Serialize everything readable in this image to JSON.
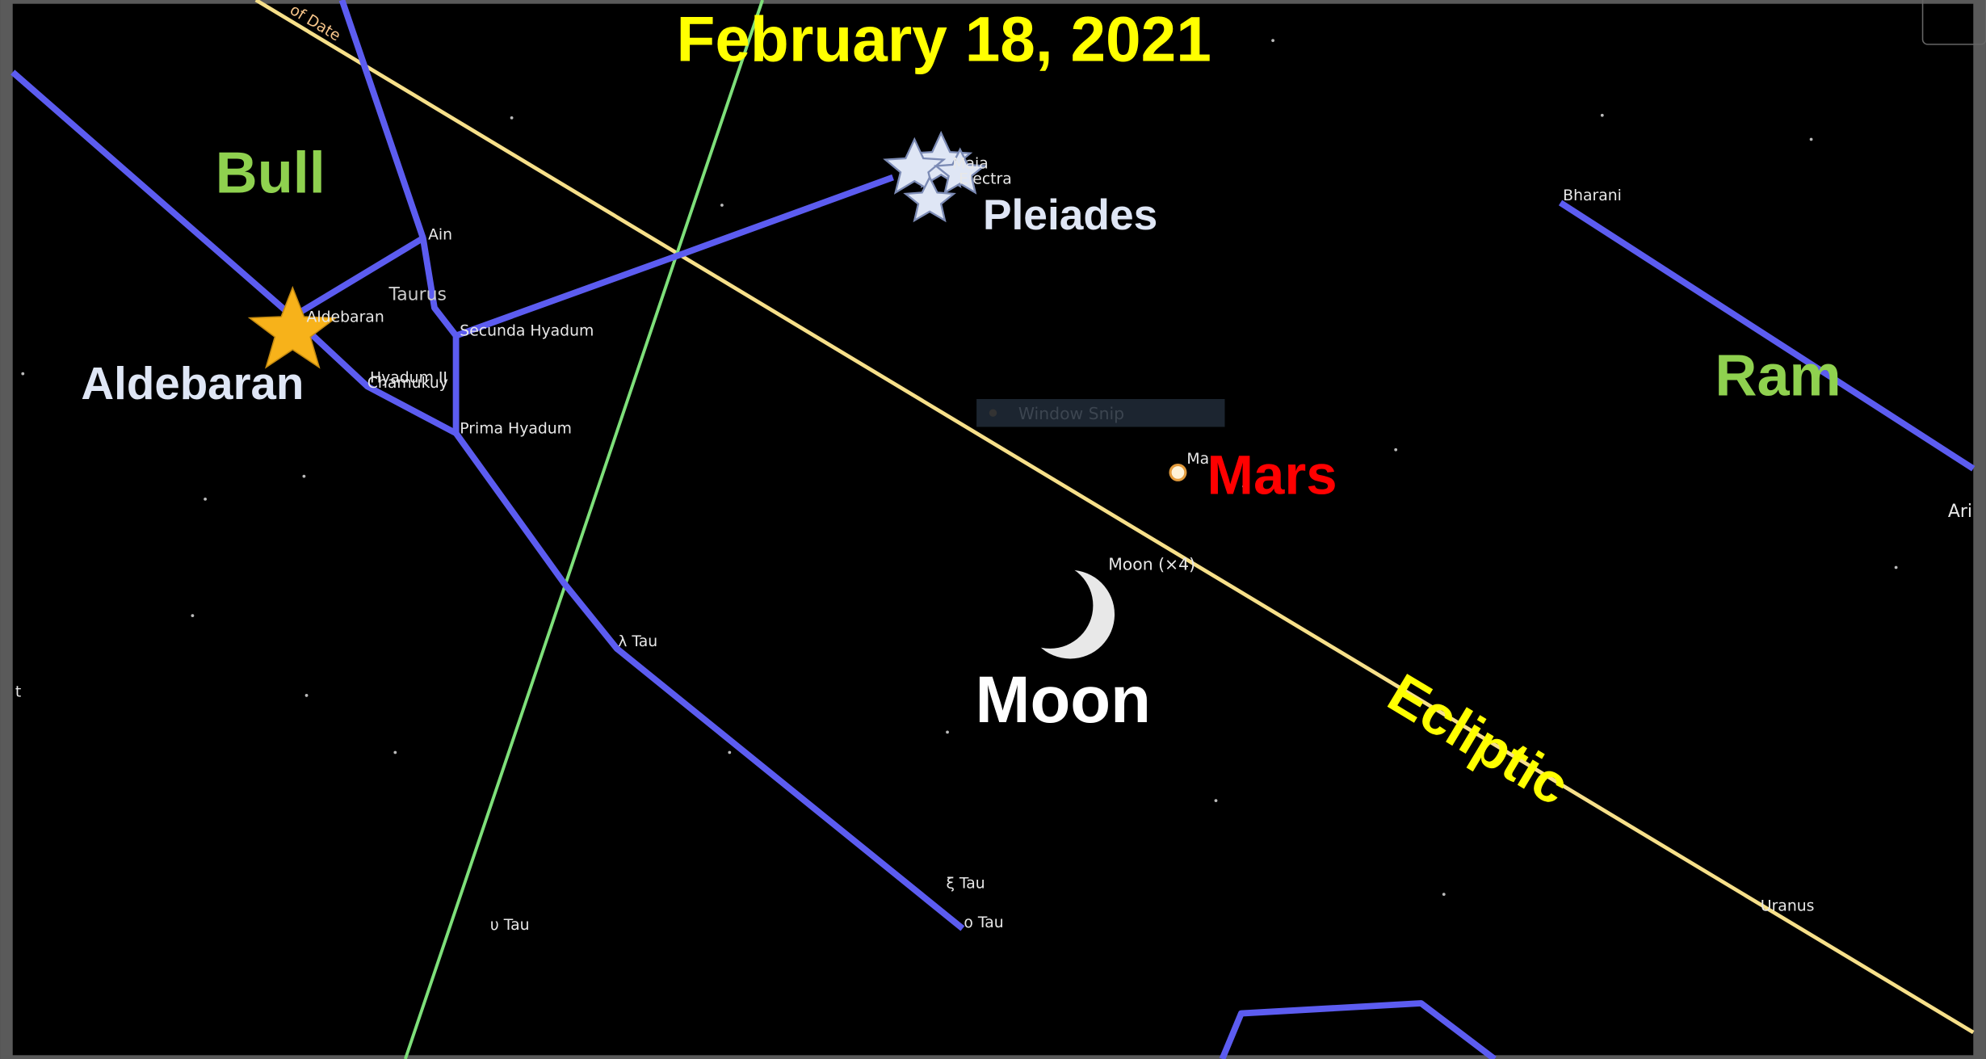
{
  "title": "February 18, 2021",
  "annotations": {
    "bull": "Bull",
    "aldebaran": "Aldebaran",
    "pleiades": "Pleiades",
    "ram": "Ram",
    "mars": "Mars",
    "moon": "Moon",
    "ecliptic": "Ecliptic"
  },
  "sky_labels": {
    "ecliptic_of_date": "of Date",
    "ain": "Ain",
    "taurus": "Taurus",
    "aldebaran": "Aldebaran",
    "secunda_hyadum": "Secunda Hyadum",
    "hyadum_ii": "Hyadum II",
    "chamukuy": "Chamukuy",
    "prima_hyadum": "Prima Hyadum",
    "lambda_tau": "λ Tau",
    "xi_tau": "ξ Tau",
    "omicron_tau": "ο Tau",
    "upsilon_tau": "υ Tau",
    "maia": "Maia",
    "electra": "Electra",
    "bharani": "Bharani",
    "mars": "Ma",
    "moon": "Moon (×4)",
    "uranus": "Uranus",
    "ari": "Ari",
    "t": "t"
  },
  "overlay": {
    "window_snip": "Window Snip"
  }
}
